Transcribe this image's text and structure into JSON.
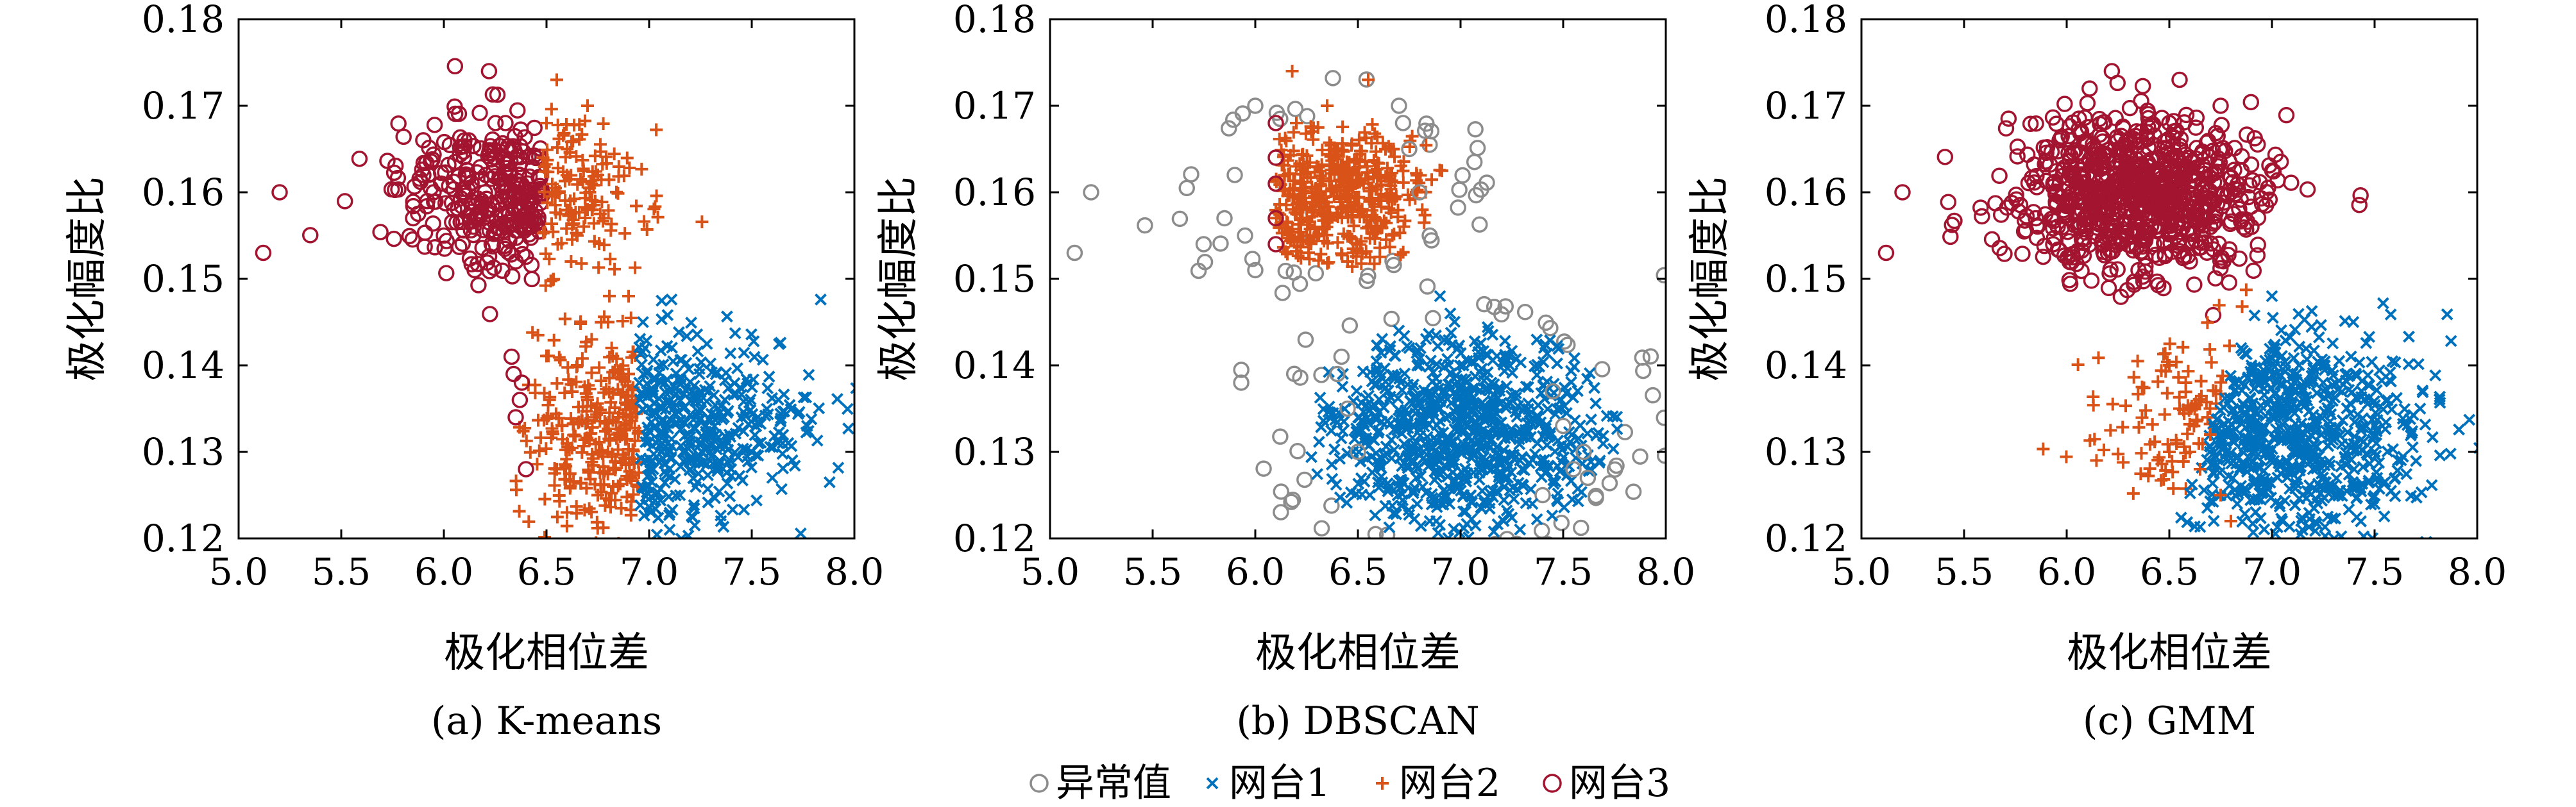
{
  "figure": {
    "legend": [
      {
        "label": "异常值",
        "marker": "circle",
        "color": "#8c8c8c"
      },
      {
        "label": "网台1",
        "marker": "x",
        "color": "#0072bd"
      },
      {
        "label": "网台2",
        "marker": "plus",
        "color": "#d95319"
      },
      {
        "label": "网台3",
        "marker": "circle",
        "color": "#a2142f"
      }
    ]
  },
  "chart_data": [
    {
      "type": "scatter",
      "caption": "(a) K-means",
      "xlabel": "极化相位差",
      "ylabel": "极化幅度比",
      "xlim": [
        5.0,
        8.0
      ],
      "ylim": [
        0.12,
        0.18
      ],
      "xticks": [
        "5.0",
        "5.5",
        "6.0",
        "6.5",
        "7.0",
        "7.5",
        "8.0"
      ],
      "yticks": [
        "0.12",
        "0.13",
        "0.14",
        "0.15",
        "0.16",
        "0.17",
        "0.18"
      ],
      "series": [
        {
          "name": "网台3",
          "marker": "circle",
          "color": "#a2142f",
          "points": [
            [
              6.2,
              0.16
            ],
            [
              5.9,
              0.162
            ],
            [
              6.0,
              0.155
            ],
            [
              6.1,
              0.166
            ],
            [
              6.3,
              0.168
            ],
            [
              6.35,
              0.152
            ],
            [
              6.05,
              0.158
            ],
            [
              6.25,
              0.164
            ],
            [
              6.4,
              0.156
            ],
            [
              5.95,
              0.16
            ],
            [
              6.15,
              0.151
            ],
            [
              6.3,
              0.162
            ],
            [
              5.85,
              0.157
            ],
            [
              6.22,
              0.174
            ],
            [
              5.2,
              0.16
            ],
            [
              5.12,
              0.153
            ],
            [
              6.33,
              0.141
            ],
            [
              6.38,
              0.138
            ],
            [
              6.35,
              0.134
            ],
            [
              6.4,
              0.128
            ],
            [
              6.37,
              0.136
            ],
            [
              6.34,
              0.139
            ]
          ]
        },
        {
          "name": "网台2",
          "marker": "plus",
          "color": "#d95319",
          "points": [
            [
              6.55,
              0.16
            ],
            [
              6.6,
              0.165
            ],
            [
              6.7,
              0.158
            ],
            [
              6.65,
              0.155
            ],
            [
              6.75,
              0.162
            ],
            [
              6.5,
              0.168
            ],
            [
              6.62,
              0.152
            ],
            [
              6.7,
              0.17
            ],
            [
              6.55,
              0.173
            ],
            [
              6.78,
              0.157
            ],
            [
              6.6,
              0.131
            ],
            [
              6.7,
              0.136
            ],
            [
              6.8,
              0.13
            ],
            [
              6.65,
              0.14
            ],
            [
              6.75,
              0.125
            ],
            [
              6.85,
              0.134
            ],
            [
              6.55,
              0.128
            ],
            [
              6.8,
              0.145
            ],
            [
              6.9,
              0.139
            ],
            [
              6.9,
              0.148
            ],
            [
              6.6,
              0.123
            ],
            [
              6.72,
              0.143
            ]
          ]
        },
        {
          "name": "网台1",
          "marker": "x",
          "color": "#0072bd",
          "points": [
            [
              7.0,
              0.135
            ],
            [
              7.1,
              0.13
            ],
            [
              7.2,
              0.128
            ],
            [
              7.05,
              0.14
            ],
            [
              7.3,
              0.132
            ],
            [
              7.15,
              0.125
            ],
            [
              6.98,
              0.142
            ],
            [
              7.4,
              0.128
            ],
            [
              7.5,
              0.13
            ],
            [
              7.6,
              0.127
            ],
            [
              7.35,
              0.122
            ],
            [
              7.1,
              0.121
            ],
            [
              6.97,
              0.145
            ],
            [
              7.25,
              0.137
            ],
            [
              7.45,
              0.134
            ],
            [
              7.02,
              0.128
            ],
            [
              7.65,
              0.131
            ]
          ]
        }
      ]
    },
    {
      "type": "scatter",
      "caption": "(b) DBSCAN",
      "xlabel": "极化相位差",
      "ylabel": "极化幅度比",
      "xlim": [
        5.0,
        8.0
      ],
      "ylim": [
        0.12,
        0.18
      ],
      "xticks": [
        "5.0",
        "5.5",
        "6.0",
        "6.5",
        "7.0",
        "7.5",
        "8.0"
      ],
      "yticks": [
        "0.12",
        "0.13",
        "0.14",
        "0.15",
        "0.16",
        "0.17",
        "0.18"
      ],
      "series": [
        {
          "name": "异常值",
          "marker": "circle",
          "color": "#8c8c8c",
          "points": [
            [
              5.2,
              0.16
            ],
            [
              5.12,
              0.153
            ],
            [
              5.9,
              0.162
            ],
            [
              5.95,
              0.155
            ],
            [
              5.85,
              0.157
            ],
            [
              6.0,
              0.17
            ],
            [
              6.75,
              0.165
            ],
            [
              6.8,
              0.16
            ],
            [
              6.85,
              0.155
            ],
            [
              6.7,
              0.17
            ],
            [
              6.0,
              0.151
            ],
            [
              6.72,
              0.168
            ],
            [
              6.4,
              0.139
            ],
            [
              6.45,
              0.135
            ],
            [
              6.5,
              0.13
            ],
            [
              6.42,
              0.141
            ],
            [
              7.5,
              0.133
            ],
            [
              7.55,
              0.128
            ],
            [
              7.6,
              0.13
            ],
            [
              7.62,
              0.127
            ],
            [
              7.45,
              0.137
            ],
            [
              7.4,
              0.125
            ]
          ]
        },
        {
          "name": "网台3",
          "marker": "circle",
          "color": "#a2142f",
          "points": [
            [
              6.1,
              0.161
            ],
            [
              6.1,
              0.157
            ],
            [
              6.1,
              0.154
            ],
            [
              6.1,
              0.164
            ],
            [
              6.1,
              0.168
            ]
          ]
        },
        {
          "name": "网台2",
          "marker": "plus",
          "color": "#d95319",
          "points": [
            [
              6.3,
              0.16
            ],
            [
              6.4,
              0.165
            ],
            [
              6.5,
              0.158
            ],
            [
              6.25,
              0.155
            ],
            [
              6.6,
              0.162
            ],
            [
              6.2,
              0.168
            ],
            [
              6.45,
              0.152
            ],
            [
              6.35,
              0.17
            ],
            [
              6.18,
              0.174
            ],
            [
              6.55,
              0.173
            ],
            [
              6.55,
              0.156
            ],
            [
              6.3,
              0.163
            ]
          ]
        },
        {
          "name": "网台1",
          "marker": "x",
          "color": "#0072bd",
          "points": [
            [
              6.9,
              0.135
            ],
            [
              7.0,
              0.13
            ],
            [
              7.1,
              0.128
            ],
            [
              6.8,
              0.14
            ],
            [
              7.2,
              0.132
            ],
            [
              7.05,
              0.125
            ],
            [
              6.75,
              0.142
            ],
            [
              7.3,
              0.128
            ],
            [
              6.95,
              0.146
            ],
            [
              6.85,
              0.122
            ],
            [
              7.15,
              0.138
            ],
            [
              6.65,
              0.136
            ],
            [
              7.35,
              0.124
            ],
            [
              6.9,
              0.148
            ]
          ]
        }
      ]
    },
    {
      "type": "scatter",
      "caption": "(c) GMM",
      "xlabel": "极化相位差",
      "ylabel": "极化幅度比",
      "xlim": [
        5.0,
        8.0
      ],
      "ylim": [
        0.12,
        0.18
      ],
      "xticks": [
        "5.0",
        "5.5",
        "6.0",
        "6.5",
        "7.0",
        "7.5",
        "8.0"
      ],
      "yticks": [
        "0.12",
        "0.13",
        "0.14",
        "0.15",
        "0.16",
        "0.17",
        "0.18"
      ],
      "series": [
        {
          "name": "网台3",
          "marker": "circle",
          "color": "#a2142f",
          "points": [
            [
              6.4,
              0.16
            ],
            [
              6.1,
              0.162
            ],
            [
              6.2,
              0.155
            ],
            [
              6.3,
              0.166
            ],
            [
              6.5,
              0.168
            ],
            [
              6.6,
              0.152
            ],
            [
              6.25,
              0.158
            ],
            [
              6.45,
              0.164
            ],
            [
              6.7,
              0.156
            ],
            [
              5.95,
              0.16
            ],
            [
              6.35,
              0.151
            ],
            [
              6.6,
              0.164
            ],
            [
              5.85,
              0.157
            ],
            [
              6.22,
              0.174
            ],
            [
              6.8,
              0.16
            ],
            [
              6.75,
              0.17
            ],
            [
              6.55,
              0.173
            ],
            [
              5.2,
              0.16
            ],
            [
              5.12,
              0.153
            ],
            [
              6.9,
              0.156
            ]
          ]
        },
        {
          "name": "网台2",
          "marker": "plus",
          "color": "#d95319",
          "points": [
            [
              6.5,
              0.14
            ],
            [
              6.55,
              0.135
            ],
            [
              6.6,
              0.13
            ],
            [
              6.65,
              0.128
            ],
            [
              6.7,
              0.132
            ],
            [
              6.75,
              0.125
            ],
            [
              6.5,
              0.13
            ],
            [
              6.58,
              0.138
            ],
            [
              6.62,
              0.133
            ],
            [
              6.8,
              0.122
            ]
          ]
        },
        {
          "name": "网台1",
          "marker": "x",
          "color": "#0072bd",
          "points": [
            [
              7.0,
              0.135
            ],
            [
              7.1,
              0.13
            ],
            [
              7.2,
              0.128
            ],
            [
              6.9,
              0.14
            ],
            [
              7.3,
              0.132
            ],
            [
              7.15,
              0.125
            ],
            [
              6.85,
              0.142
            ],
            [
              7.4,
              0.128
            ],
            [
              7.5,
              0.13
            ],
            [
              7.6,
              0.127
            ],
            [
              7.0,
              0.148
            ],
            [
              6.8,
              0.136
            ],
            [
              7.25,
              0.138
            ],
            [
              7.05,
              0.122
            ]
          ]
        }
      ]
    }
  ]
}
